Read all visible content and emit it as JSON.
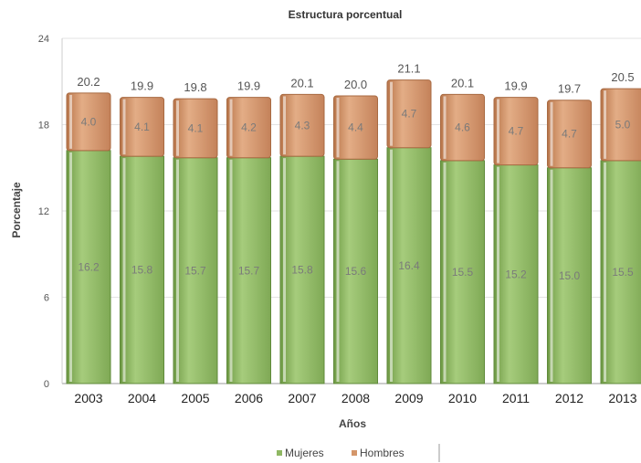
{
  "chart_data": {
    "type": "bar",
    "stacked": true,
    "title": "Estructura porcentual",
    "xlabel": "Años",
    "ylabel": "Porcentaje",
    "categories": [
      "2003",
      "2004",
      "2005",
      "2006",
      "2007",
      "2008",
      "2009",
      "2010",
      "2011",
      "2012",
      "2013"
    ],
    "series": [
      {
        "name": "Mujeres",
        "color": "#8fb863",
        "values": [
          16.2,
          15.8,
          15.7,
          15.7,
          15.8,
          15.6,
          16.4,
          15.5,
          15.2,
          15.0,
          15.5
        ]
      },
      {
        "name": "Hombres",
        "color": "#d4966a",
        "values": [
          4.0,
          4.1,
          4.1,
          4.2,
          4.3,
          4.4,
          4.7,
          4.6,
          4.7,
          4.7,
          5.0
        ]
      }
    ],
    "totals": [
      20.2,
      19.9,
      19.8,
      19.9,
      20.1,
      20.0,
      21.1,
      20.1,
      19.9,
      19.7,
      20.5
    ],
    "ylim": [
      0,
      24
    ],
    "yticks": [
      0,
      6,
      12,
      18,
      24
    ],
    "grid": true,
    "legend_position": "bottom"
  }
}
